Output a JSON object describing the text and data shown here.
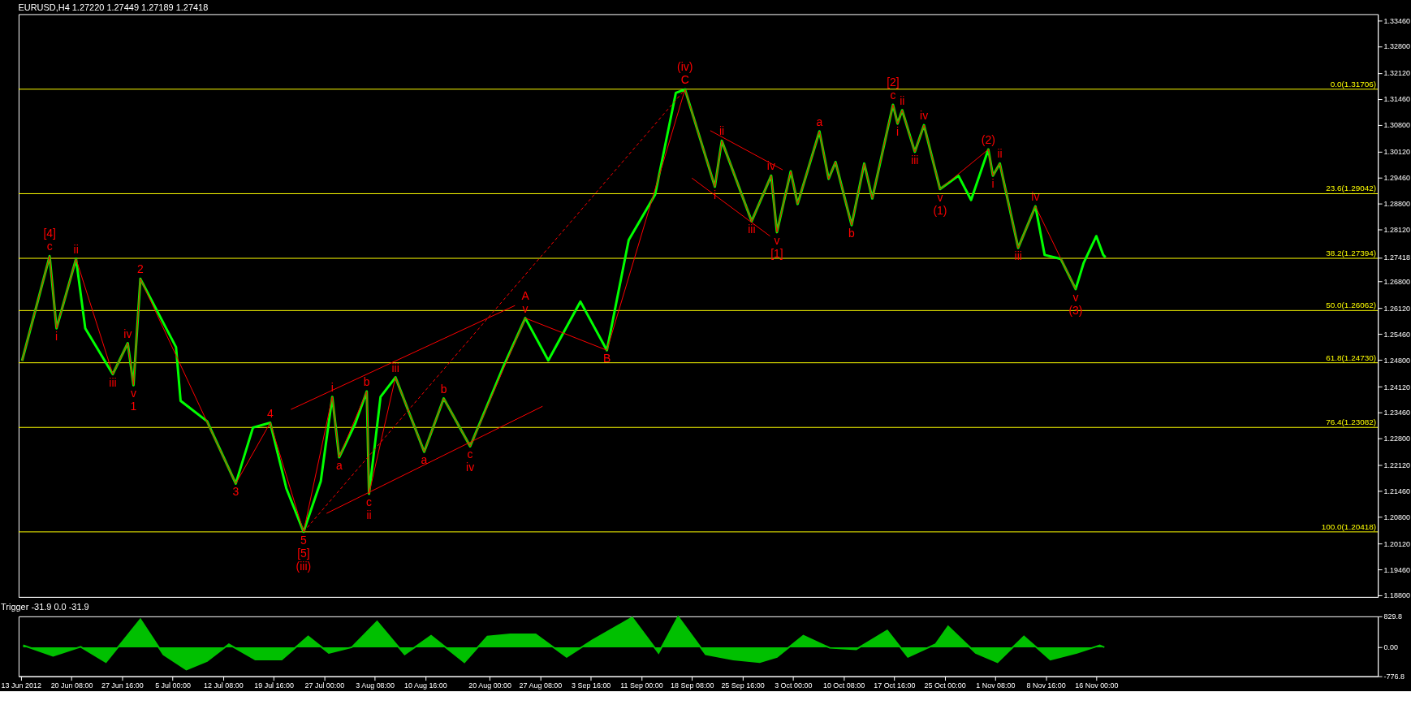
{
  "chart_data": [
    {
      "type": "line",
      "title": "EURUSD,H4  1.27220 1.27449 1.27189 1.27418",
      "xlim": [
        "2012-06-12T16:00",
        "2012-12-26T20:00"
      ],
      "ylim": [
        1.1876,
        1.3362
      ],
      "tick_labels": "y",
      "yticks": [
        {
          "value": 1.3346,
          "label": "1.33460"
        },
        {
          "value": 1.328,
          "label": "1.32800"
        },
        {
          "value": 1.3212,
          "label": "1.32120"
        },
        {
          "value": 1.3146,
          "label": "1.31460"
        },
        {
          "value": 1.308,
          "label": "1.30800"
        },
        {
          "value": 1.3012,
          "label": "1.30120"
        },
        {
          "value": 1.2946,
          "label": "1.29460"
        },
        {
          "value": 1.288,
          "label": "1.28800"
        },
        {
          "value": 1.2812,
          "label": "1.28120"
        },
        {
          "value": 1.27418,
          "label": "1.27418"
        },
        {
          "value": 1.268,
          "label": "1.26800"
        },
        {
          "value": 1.2612,
          "label": "1.26120"
        },
        {
          "value": 1.2546,
          "label": "1.25460"
        },
        {
          "value": 1.248,
          "label": "1.24800"
        },
        {
          "value": 1.2412,
          "label": "1.24120"
        },
        {
          "value": 1.2346,
          "label": "1.23460"
        },
        {
          "value": 1.228,
          "label": "1.22800"
        },
        {
          "value": 1.2212,
          "label": "1.22120"
        },
        {
          "value": 1.2146,
          "label": "1.21460"
        },
        {
          "value": 1.208,
          "label": "1.20800"
        },
        {
          "value": 1.2012,
          "label": "1.20120"
        },
        {
          "value": 1.1946,
          "label": "1.19460"
        },
        {
          "value": 1.188,
          "label": "1.18800"
        }
      ],
      "series": [
        {
          "color": "#00ff00",
          "x": [
            "2012-06-13T04:00",
            "2012-06-17T04:00",
            "2012-06-18T04:00",
            "2012-06-21T00:00",
            "2012-06-22T08:00",
            "2012-06-26T08:00",
            "2012-06-28T12:00",
            "2012-06-29T08:00",
            "2012-06-30T08:00",
            "2012-07-05T12:00",
            "2012-07-06T04:00",
            "2012-07-10T00:00",
            "2012-07-14T04:00",
            "2012-07-16T16:00",
            "2012-07-19T04:00",
            "2012-07-21T12:00",
            "2012-07-24T00:00",
            "2012-07-26T12:00",
            "2012-07-28T04:00",
            "2012-07-29T04:00",
            "2012-07-31T12:00",
            "2012-08-02T04:00",
            "2012-08-02T12:00",
            "2012-08-04T04:00",
            "2012-08-06T08:00",
            "2012-08-10T12:00",
            "2012-08-13T08:00",
            "2012-08-17T04:00",
            "2012-08-22T00:00",
            "2012-08-25T04:00",
            "2012-08-28T12:00",
            "2012-09-02T04:00",
            "2012-09-06T00:00",
            "2012-09-09T04:00",
            "2012-09-13T00:00",
            "2012-09-16T00:00",
            "2012-09-17T08:00",
            "2012-09-21T16:00",
            "2012-09-22T16:00",
            "2012-09-27T00:00",
            "2012-09-29T20:00",
            "2012-09-30T16:00",
            "2012-10-02T16:00",
            "2012-10-03T16:00",
            "2012-10-06T20:00",
            "2012-10-08T04:00",
            "2012-10-09T04:00",
            "2012-10-11T12:00",
            "2012-10-13T08:00",
            "2012-10-14T12:00",
            "2012-10-17T12:00",
            "2012-10-18T04:00",
            "2012-10-18T20:00",
            "2012-10-20T16:00",
            "2012-10-22T00:00",
            "2012-10-24T08:00",
            "2012-10-27T00:00",
            "2012-10-28T20:00",
            "2012-10-31T08:00",
            "2012-11-01T00:00",
            "2012-11-02T00:00",
            "2012-11-04T16:00",
            "2012-11-07T04:00",
            "2012-11-08T12:00",
            "2012-11-10T20:00",
            "2012-11-13T00:00",
            "2012-11-14T04:00",
            "2012-11-16T00:00",
            "2012-11-17T00:00",
            "2012-11-17T08:00"
          ],
          "values": [
            1.2478,
            1.2745,
            1.2561,
            1.2738,
            1.2561,
            1.2444,
            1.2523,
            1.2416,
            1.2687,
            1.2513,
            1.2376,
            1.2324,
            1.2165,
            1.2308,
            1.232,
            1.2153,
            1.2042,
            1.2171,
            1.2386,
            1.2232,
            1.2318,
            1.24,
            1.2139,
            1.2386,
            1.2436,
            1.2246,
            1.2382,
            1.226,
            1.2464,
            1.2587,
            1.2479,
            1.2629,
            1.2505,
            1.2786,
            1.2902,
            1.3161,
            1.317,
            1.2922,
            1.3039,
            1.2834,
            1.295,
            1.2806,
            1.2961,
            1.2878,
            1.3063,
            1.2942,
            1.2985,
            1.2824,
            1.2981,
            1.2892,
            1.3131,
            1.3083,
            1.3117,
            1.3011,
            1.3079,
            1.2916,
            1.295,
            1.2888,
            1.3017,
            1.295,
            1.2981,
            1.2766,
            1.2872,
            1.2748,
            1.2738,
            1.2661,
            1.2728,
            1.2796,
            1.2748,
            1.27418
          ]
        },
        {
          "color": "#ff0000",
          "x": [
            "2012-06-13T04:00",
            "2012-06-17T04:00",
            "2012-06-18T04:00",
            "2012-06-21T00:00",
            "2012-06-26T08:00",
            "2012-06-28T12:00",
            "2012-06-29T08:00",
            "2012-06-30T08:00",
            "2012-07-14T04:00",
            "2012-07-19T04:00",
            "2012-07-24T00:00",
            "2012-07-28T04:00",
            "2012-07-29T04:00",
            "2012-08-02T04:00",
            "2012-08-02T12:00",
            "2012-08-06T08:00",
            "2012-08-10T12:00",
            "2012-08-13T08:00",
            "2012-08-17T04:00",
            "2012-08-25T04:00",
            "2012-09-06T00:00",
            "2012-09-17T08:00",
            "2012-09-21T16:00",
            "2012-09-22T16:00",
            "2012-09-27T00:00",
            "2012-09-29T20:00",
            "2012-09-30T16:00",
            "2012-10-02T16:00",
            "2012-10-03T16:00",
            "2012-10-06T20:00",
            "2012-10-08T04:00",
            "2012-10-09T04:00",
            "2012-10-11T12:00",
            "2012-10-13T08:00",
            "2012-10-14T12:00",
            "2012-10-17T12:00",
            "2012-10-18T04:00",
            "2012-10-18T20:00",
            "2012-10-20T16:00",
            "2012-10-22T00:00",
            "2012-10-24T08:00",
            "2012-10-31T08:00",
            "2012-11-01T00:00",
            "2012-11-02T00:00",
            "2012-11-04T16:00",
            "2012-11-07T04:00",
            "2012-11-13T00:00"
          ],
          "values": [
            1.2478,
            1.2745,
            1.2561,
            1.2738,
            1.2444,
            1.2523,
            1.2416,
            1.2687,
            1.2165,
            1.232,
            1.2042,
            1.2386,
            1.2232,
            1.24,
            1.2139,
            1.2436,
            1.2246,
            1.2382,
            1.226,
            1.2587,
            1.2505,
            1.317,
            1.2922,
            1.3039,
            1.2834,
            1.295,
            1.2806,
            1.2961,
            1.2878,
            1.3063,
            1.2942,
            1.2985,
            1.2824,
            1.2981,
            1.2892,
            1.3131,
            1.3083,
            1.3117,
            1.3011,
            1.3079,
            1.2916,
            1.3017,
            1.295,
            1.2981,
            1.2766,
            1.2872,
            1.2661
          ]
        },
        {
          "color": "#ff0000",
          "x": [
            "2012-07-22T04:00",
            "2012-08-23T16:00"
          ],
          "values": [
            1.2354,
            1.2619
          ]
        },
        {
          "color": "#ff0000",
          "x": [
            "2012-07-27T08:00",
            "2012-08-27T16:00"
          ],
          "values": [
            1.2089,
            1.2362
          ]
        },
        {
          "color": "#ff0000",
          "line_style": "dashed",
          "x": [
            "2012-07-24T00:00",
            "2012-09-17T08:00"
          ],
          "values": [
            1.2042,
            1.317
          ]
        },
        {
          "color": "#ff0000",
          "x": [
            "2012-09-21T00:00",
            "2012-10-01T12:00"
          ],
          "values": [
            1.3065,
            1.2965
          ]
        },
        {
          "color": "#ff0000",
          "x": [
            "2012-09-18T08:00",
            "2012-09-29T16:00"
          ],
          "values": [
            1.2944,
            1.2796
          ]
        }
      ],
      "ref_lines": [
        {
          "axis": "y",
          "value": 1.31706,
          "label": "0.0(1.31706)",
          "color": "#ffff00"
        },
        {
          "axis": "y",
          "value": 1.29042,
          "label": "23.6(1.29042)",
          "color": "#ffff00"
        },
        {
          "axis": "y",
          "value": 1.27394,
          "label": "38.2(1.27394)",
          "color": "#ffff00"
        },
        {
          "axis": "y",
          "value": 1.26062,
          "label": "50.0(1.26062)",
          "color": "#ffff00"
        },
        {
          "axis": "y",
          "value": 1.2473,
          "label": "61.8(1.24730)",
          "color": "#ffff00"
        },
        {
          "axis": "y",
          "value": 1.23082,
          "label": "76.4(1.23082)",
          "color": "#ffff00"
        },
        {
          "axis": "y",
          "value": 1.20418,
          "label": "100.0(1.20418)",
          "color": "#ffff00"
        }
      ],
      "annotations": [
        {
          "text": "c",
          "x": "2012-06-17T04:00",
          "y": 1.2745
        },
        {
          "text": "[4]",
          "x": "2012-06-17T04:00",
          "y": 1.2745
        },
        {
          "text": "i",
          "x": "2012-06-18T04:00",
          "y": 1.2561
        },
        {
          "text": "ii",
          "x": "2012-06-21T00:00",
          "y": 1.2738
        },
        {
          "text": "iii",
          "x": "2012-06-26T08:00",
          "y": 1.2444
        },
        {
          "text": "iv",
          "x": "2012-06-28T12:00",
          "y": 1.2523
        },
        {
          "text": "v",
          "x": "2012-06-29T08:00",
          "y": 1.2416
        },
        {
          "text": "1",
          "x": "2012-06-29T08:00",
          "y": 1.2416
        },
        {
          "text": "2",
          "x": "2012-06-30T08:00",
          "y": 1.2687
        },
        {
          "text": "3",
          "x": "2012-07-14T04:00",
          "y": 1.2165
        },
        {
          "text": "4",
          "x": "2012-07-19T04:00",
          "y": 1.232
        },
        {
          "text": "5",
          "x": "2012-07-24T00:00",
          "y": 1.2042
        },
        {
          "text": "[5]",
          "x": "2012-07-24T00:00",
          "y": 1.2042
        },
        {
          "text": "(iii)",
          "x": "2012-07-24T00:00",
          "y": 1.2042
        },
        {
          "text": "i",
          "x": "2012-07-28T04:00",
          "y": 1.2386
        },
        {
          "text": "a",
          "x": "2012-07-29T04:00",
          "y": 1.2232
        },
        {
          "text": "b",
          "x": "2012-08-02T04:00",
          "y": 1.24
        },
        {
          "text": "c",
          "x": "2012-08-02T12:00",
          "y": 1.2139
        },
        {
          "text": "ii",
          "x": "2012-08-02T12:00",
          "y": 1.2139
        },
        {
          "text": "iii",
          "x": "2012-08-06T08:00",
          "y": 1.2436
        },
        {
          "text": "a",
          "x": "2012-08-10T12:00",
          "y": 1.2246
        },
        {
          "text": "b",
          "x": "2012-08-13T08:00",
          "y": 1.2382
        },
        {
          "text": "c",
          "x": "2012-08-17T04:00",
          "y": 1.226
        },
        {
          "text": "iv",
          "x": "2012-08-17T04:00",
          "y": 1.226
        },
        {
          "text": "v",
          "x": "2012-08-25T04:00",
          "y": 1.2587
        },
        {
          "text": "A",
          "x": "2012-08-25T04:00",
          "y": 1.2587
        },
        {
          "text": "B",
          "x": "2012-09-06T00:00",
          "y": 1.2505
        },
        {
          "text": "C",
          "x": "2012-09-17T08:00",
          "y": 1.317
        },
        {
          "text": "(iv)",
          "x": "2012-09-17T08:00",
          "y": 1.317
        },
        {
          "text": "i",
          "x": "2012-09-21T16:00",
          "y": 1.2922
        },
        {
          "text": "ii",
          "x": "2012-09-22T16:00",
          "y": 1.3039
        },
        {
          "text": "iii",
          "x": "2012-09-27T00:00",
          "y": 1.2834
        },
        {
          "text": "iv",
          "x": "2012-09-29T20:00",
          "y": 1.295
        },
        {
          "text": "v",
          "x": "2012-09-30T16:00",
          "y": 1.2806
        },
        {
          "text": "[1]",
          "x": "2012-09-30T16:00",
          "y": 1.2806
        },
        {
          "text": "a",
          "x": "2012-10-06T20:00",
          "y": 1.3063
        },
        {
          "text": "b",
          "x": "2012-10-11T12:00",
          "y": 1.2824
        },
        {
          "text": "c",
          "x": "2012-10-17T12:00",
          "y": 1.3131
        },
        {
          "text": "[2]",
          "x": "2012-10-17T12:00",
          "y": 1.3131
        },
        {
          "text": "i",
          "x": "2012-10-18T04:00",
          "y": 1.3083
        },
        {
          "text": "ii",
          "x": "2012-10-18T20:00",
          "y": 1.3117
        },
        {
          "text": "iii",
          "x": "2012-10-20T16:00",
          "y": 1.3011
        },
        {
          "text": "iv",
          "x": "2012-10-22T00:00",
          "y": 1.3079
        },
        {
          "text": "v",
          "x": "2012-10-24T08:00",
          "y": 1.2916
        },
        {
          "text": "(1)",
          "x": "2012-10-24T08:00",
          "y": 1.2916
        },
        {
          "text": "(2)",
          "x": "2012-10-31T08:00",
          "y": 1.3017
        },
        {
          "text": "i",
          "x": "2012-11-01T00:00",
          "y": 1.295
        },
        {
          "text": "ii",
          "x": "2012-11-02T00:00",
          "y": 1.2981
        },
        {
          "text": "iii",
          "x": "2012-11-04T16:00",
          "y": 1.2766
        },
        {
          "text": "iv",
          "x": "2012-11-07T04:00",
          "y": 1.2872
        },
        {
          "text": "v",
          "x": "2012-11-13T00:00",
          "y": 1.2661
        },
        {
          "text": "(3)",
          "x": "2012-11-13T00:00",
          "y": 1.2661
        }
      ]
    },
    {
      "type": "area",
      "title": "Trigger -31.9 0.0 -31.9",
      "xlim": [
        "2012-06-12T16:00",
        "2012-12-26T20:00"
      ],
      "ylim": [
        -776.8,
        829.8
      ],
      "yticks": [
        829.8,
        {
          "value": 0,
          "label": "0.00"
        },
        -776.8
      ],
      "xticks": [
        {
          "value": "2012-06-13T00:00",
          "label": "13 Jun 2012"
        },
        {
          "value": "2012-06-20T08:00",
          "label": "20 Jun 08:00"
        },
        {
          "value": "2012-06-27T16:00",
          "label": "27 Jun 16:00"
        },
        {
          "value": "2012-07-05T00:00",
          "label": "5 Jul 00:00"
        },
        {
          "value": "2012-07-12T08:00",
          "label": "12 Jul 08:00"
        },
        {
          "value": "2012-07-19T16:00",
          "label": "19 Jul 16:00"
        },
        {
          "value": "2012-07-27T00:00",
          "label": "27 Jul 00:00"
        },
        {
          "value": "2012-08-03T08:00",
          "label": "3 Aug 08:00"
        },
        {
          "value": "2012-08-10T16:00",
          "label": "10 Aug 16:00"
        },
        {
          "value": "2012-08-20T00:00",
          "label": "20 Aug 00:00"
        },
        {
          "value": "2012-08-27T08:00",
          "label": "27 Aug 08:00"
        },
        {
          "value": "2012-09-03T16:00",
          "label": "3 Sep 16:00"
        },
        {
          "value": "2012-09-11T00:00",
          "label": "11 Sep 00:00"
        },
        {
          "value": "2012-09-18T08:00",
          "label": "18 Sep 08:00"
        },
        {
          "value": "2012-09-25T16:00",
          "label": "25 Sep 16:00"
        },
        {
          "value": "2012-10-03T00:00",
          "label": "3 Oct 00:00"
        },
        {
          "value": "2012-10-10T08:00",
          "label": "10 Oct 08:00"
        },
        {
          "value": "2012-10-17T16:00",
          "label": "17 Oct 16:00"
        },
        {
          "value": "2012-10-25T00:00",
          "label": "25 Oct 00:00"
        },
        {
          "value": "2012-11-01T08:00",
          "label": "1 Nov 08:00"
        },
        {
          "value": "2012-11-08T16:00",
          "label": "8 Nov 16:00"
        },
        {
          "value": "2012-11-16T00:00",
          "label": "16 Nov 00:00"
        }
      ],
      "series": [
        {
          "color": "#00c000",
          "x": [
            "2012-06-13T08:00",
            "2012-06-17T16:00",
            "2012-06-21T16:00",
            "2012-06-25T08:00",
            "2012-06-30T08:00",
            "2012-07-03T16:00",
            "2012-07-07T00:00",
            "2012-07-10T00:00",
            "2012-07-13T04:00",
            "2012-07-17T00:00",
            "2012-07-20T20:00",
            "2012-07-24T16:00",
            "2012-07-27T16:00",
            "2012-07-31T00:00",
            "2012-08-03T16:00",
            "2012-08-07T16:00",
            "2012-08-11T12:00",
            "2012-08-16T08:00",
            "2012-08-19T16:00",
            "2012-08-23T00:00",
            "2012-08-26T16:00",
            "2012-08-31T04:00",
            "2012-09-03T20:00",
            "2012-09-09T16:00",
            "2012-09-13T12:00",
            "2012-09-16T08:00",
            "2012-09-20T08:00",
            "2012-09-24T08:00",
            "2012-09-28T04:00",
            "2012-09-30T16:00",
            "2012-10-04T12:00",
            "2012-10-08T08:00",
            "2012-10-12T04:00",
            "2012-10-16T16:00",
            "2012-10-19T16:00",
            "2012-10-23T16:00",
            "2012-10-25T12:00",
            "2012-10-29T12:00",
            "2012-11-01T16:00",
            "2012-11-05T12:00",
            "2012-11-09T08:00",
            "2012-11-13T04:00",
            "2012-11-16T12:00",
            "2012-11-17T04:00"
          ],
          "values": [
            54,
            -230,
            14,
            -400,
            750,
            -190,
            -600,
            -370,
            80,
            -330,
            -330,
            290,
            -150,
            0,
            690,
            -190,
            310,
            -400,
            290,
            350,
            350,
            -260,
            180,
            800,
            -150,
            820,
            -190,
            -330,
            -400,
            -260,
            310,
            -15,
            -55,
            450,
            -260,
            80,
            560,
            -150,
            -400,
            290,
            -330,
            -150,
            50,
            0
          ]
        }
      ]
    }
  ]
}
